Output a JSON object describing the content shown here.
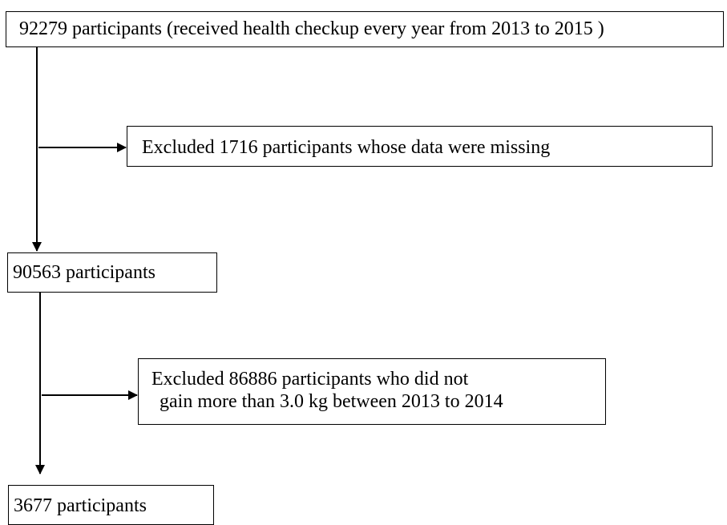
{
  "boxes": {
    "start": "92279 participants (received  health checkup every year from 2013 to 2015 )",
    "exclusion1": "Excluded 1716 participants whose data were missing",
    "step2": "90563 participants",
    "exclusion2_line1": "Excluded 86886 participants who did not",
    "exclusion2_line2": "gain more than 3.0 kg between 2013 to 2014",
    "final": "3677 participants"
  }
}
